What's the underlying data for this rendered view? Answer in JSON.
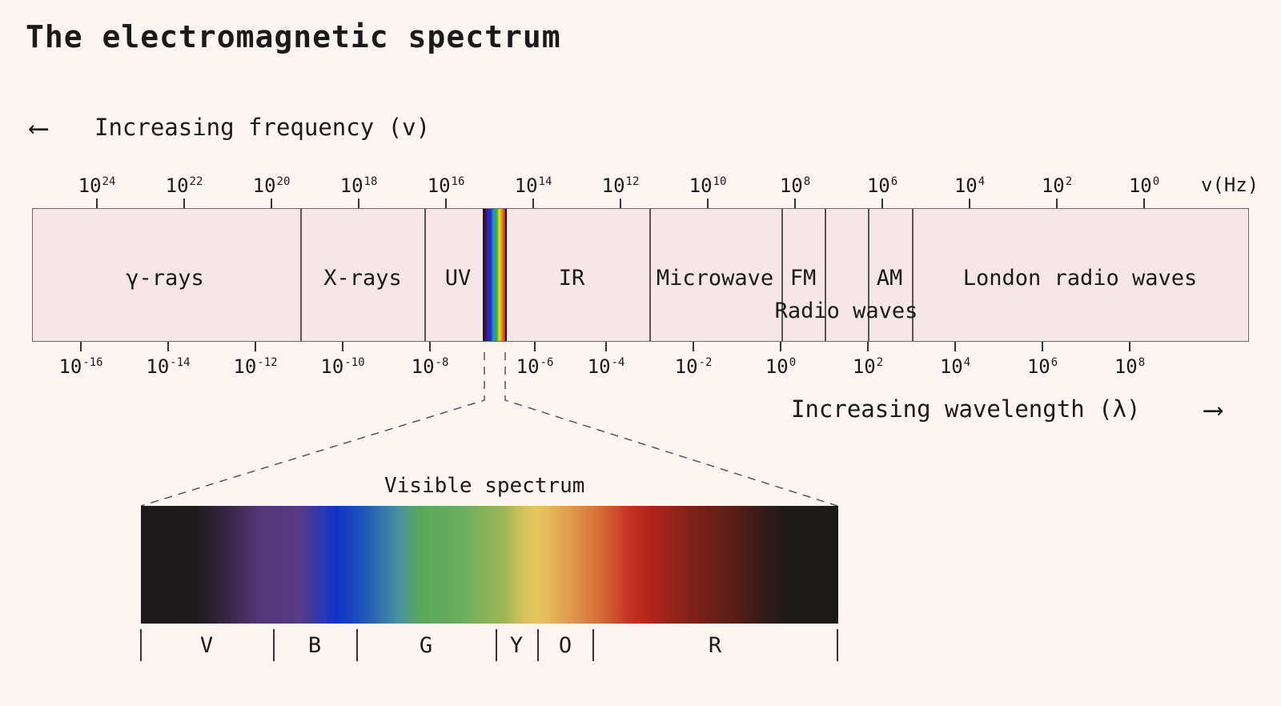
{
  "title": "The electromagnetic spectrum",
  "frequency_axis": {
    "caption": "Increasing frequency (v)",
    "arrow": "⟵",
    "unit": "v(Hz)",
    "ticks": [
      {
        "base": "10",
        "exp": "24"
      },
      {
        "base": "10",
        "exp": "22"
      },
      {
        "base": "10",
        "exp": "20"
      },
      {
        "base": "10",
        "exp": "18"
      },
      {
        "base": "10",
        "exp": "16"
      },
      {
        "base": "10",
        "exp": "14"
      },
      {
        "base": "10",
        "exp": "12"
      },
      {
        "base": "10",
        "exp": "10"
      },
      {
        "base": "10",
        "exp": "8"
      },
      {
        "base": "10",
        "exp": "6"
      },
      {
        "base": "10",
        "exp": "4"
      },
      {
        "base": "10",
        "exp": "2"
      },
      {
        "base": "10",
        "exp": "0"
      }
    ]
  },
  "wavelength_axis": {
    "caption": "Increasing wavelength (λ)",
    "arrow": "⟶",
    "ticks": [
      {
        "base": "10",
        "exp": "-16"
      },
      {
        "base": "10",
        "exp": "-14"
      },
      {
        "base": "10",
        "exp": "-12"
      },
      {
        "base": "10",
        "exp": "-10"
      },
      {
        "base": "10",
        "exp": "-8"
      },
      {
        "base": "10",
        "exp": "-6"
      },
      {
        "base": "10",
        "exp": "-4"
      },
      {
        "base": "10",
        "exp": "-2"
      },
      {
        "base": "10",
        "exp": "0"
      },
      {
        "base": "10",
        "exp": "2"
      },
      {
        "base": "10",
        "exp": "4"
      },
      {
        "base": "10",
        "exp": "6"
      },
      {
        "base": "10",
        "exp": "8"
      }
    ]
  },
  "bands": [
    {
      "label": "γ-rays"
    },
    {
      "label": "X-rays"
    },
    {
      "label": "UV"
    },
    {
      "label": "IR"
    },
    {
      "label": "Microwave"
    },
    {
      "label": "FM"
    },
    {
      "label": "AM"
    },
    {
      "label": "London radio waves"
    }
  ],
  "radio_group_label": "Radio waves",
  "visible": {
    "label": "Visible spectrum",
    "colors": [
      "V",
      "B",
      "G",
      "Y",
      "O",
      "R"
    ]
  }
}
